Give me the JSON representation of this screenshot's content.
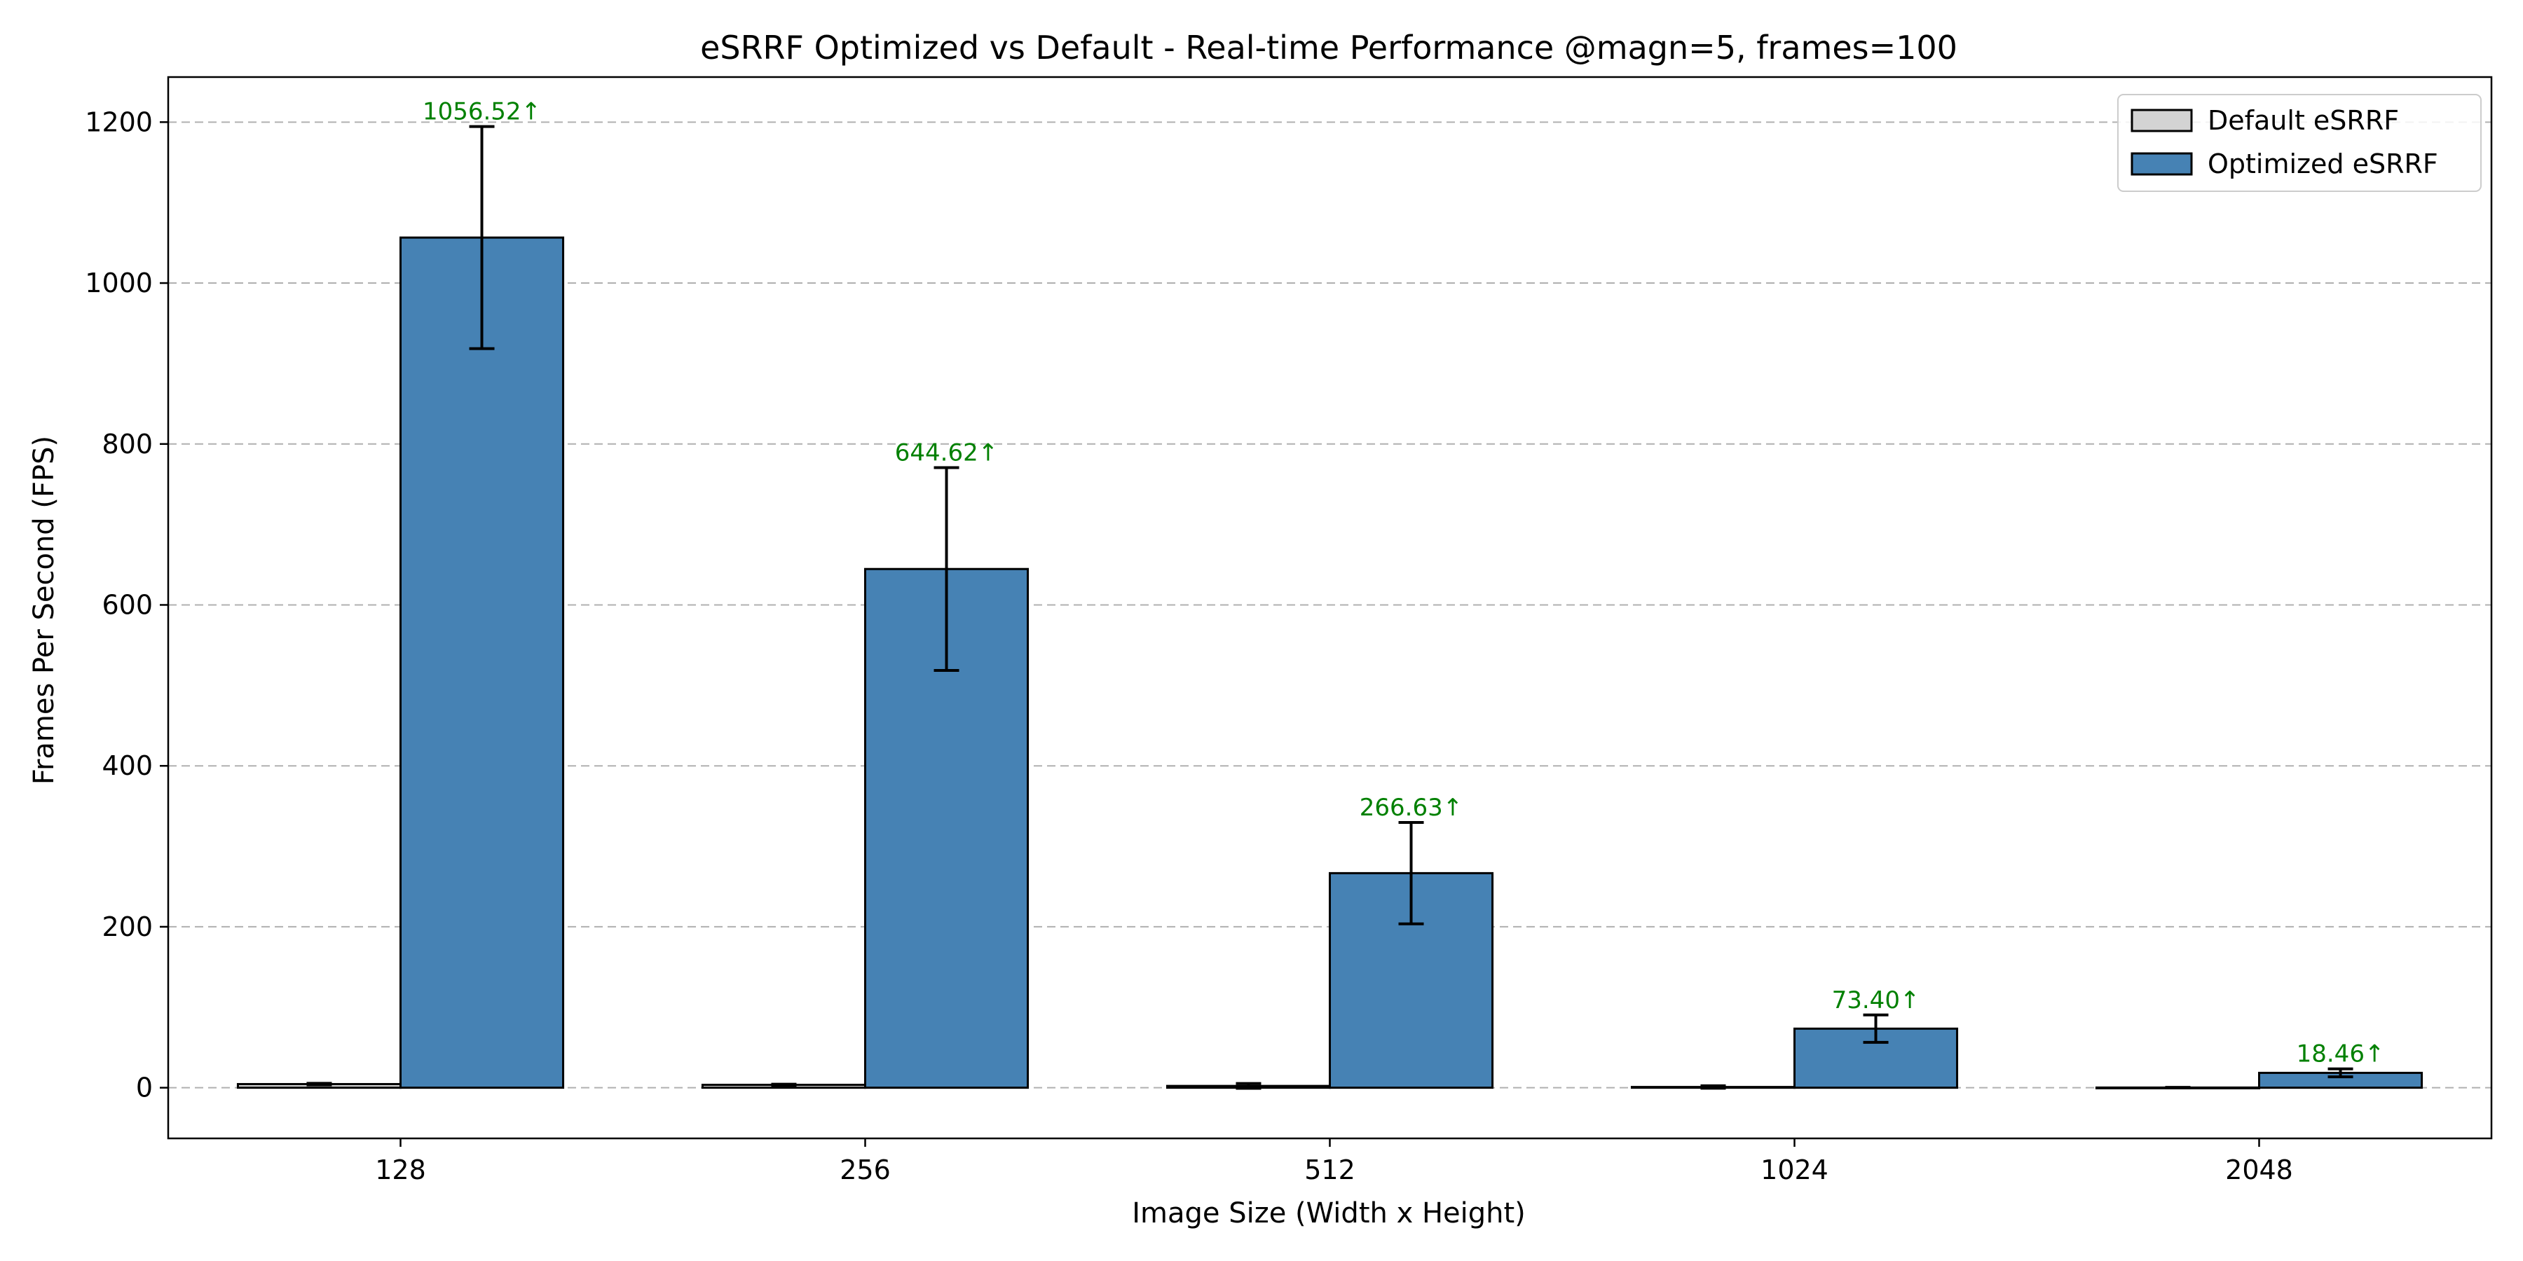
{
  "chart_data": {
    "type": "bar",
    "title": "eSRRF Optimized vs Default - Real-time Performance @magn=5, frames=100",
    "xlabel": "Image Size (Width x Height)",
    "ylabel": "Frames Per Second (FPS)",
    "categories": [
      "128",
      "256",
      "512",
      "1024",
      "2048"
    ],
    "ylim": [
      -63,
      1256
    ],
    "yticks": [
      0,
      200,
      400,
      600,
      800,
      1000,
      1200
    ],
    "grid": "y-dashed",
    "legend_position": "top-right",
    "series": [
      {
        "name": "Default eSRRF",
        "color": "#d3d3d3",
        "values": [
          4.5,
          3.6,
          2.2,
          0.9,
          0.2
        ],
        "errors": [
          1.0,
          0.8,
          3.0,
          1.5,
          0.3
        ]
      },
      {
        "name": "Optimized eSRRF",
        "color": "#4682b4",
        "values": [
          1056.52,
          644.62,
          266.63,
          73.4,
          18.46
        ],
        "errors": [
          138,
          126,
          63,
          17,
          5
        ]
      }
    ],
    "annotations": [
      "1056.52↑",
      "644.62↑",
      "266.63↑",
      "73.40↑",
      "18.46↑"
    ],
    "annotation_color": "#008000"
  }
}
